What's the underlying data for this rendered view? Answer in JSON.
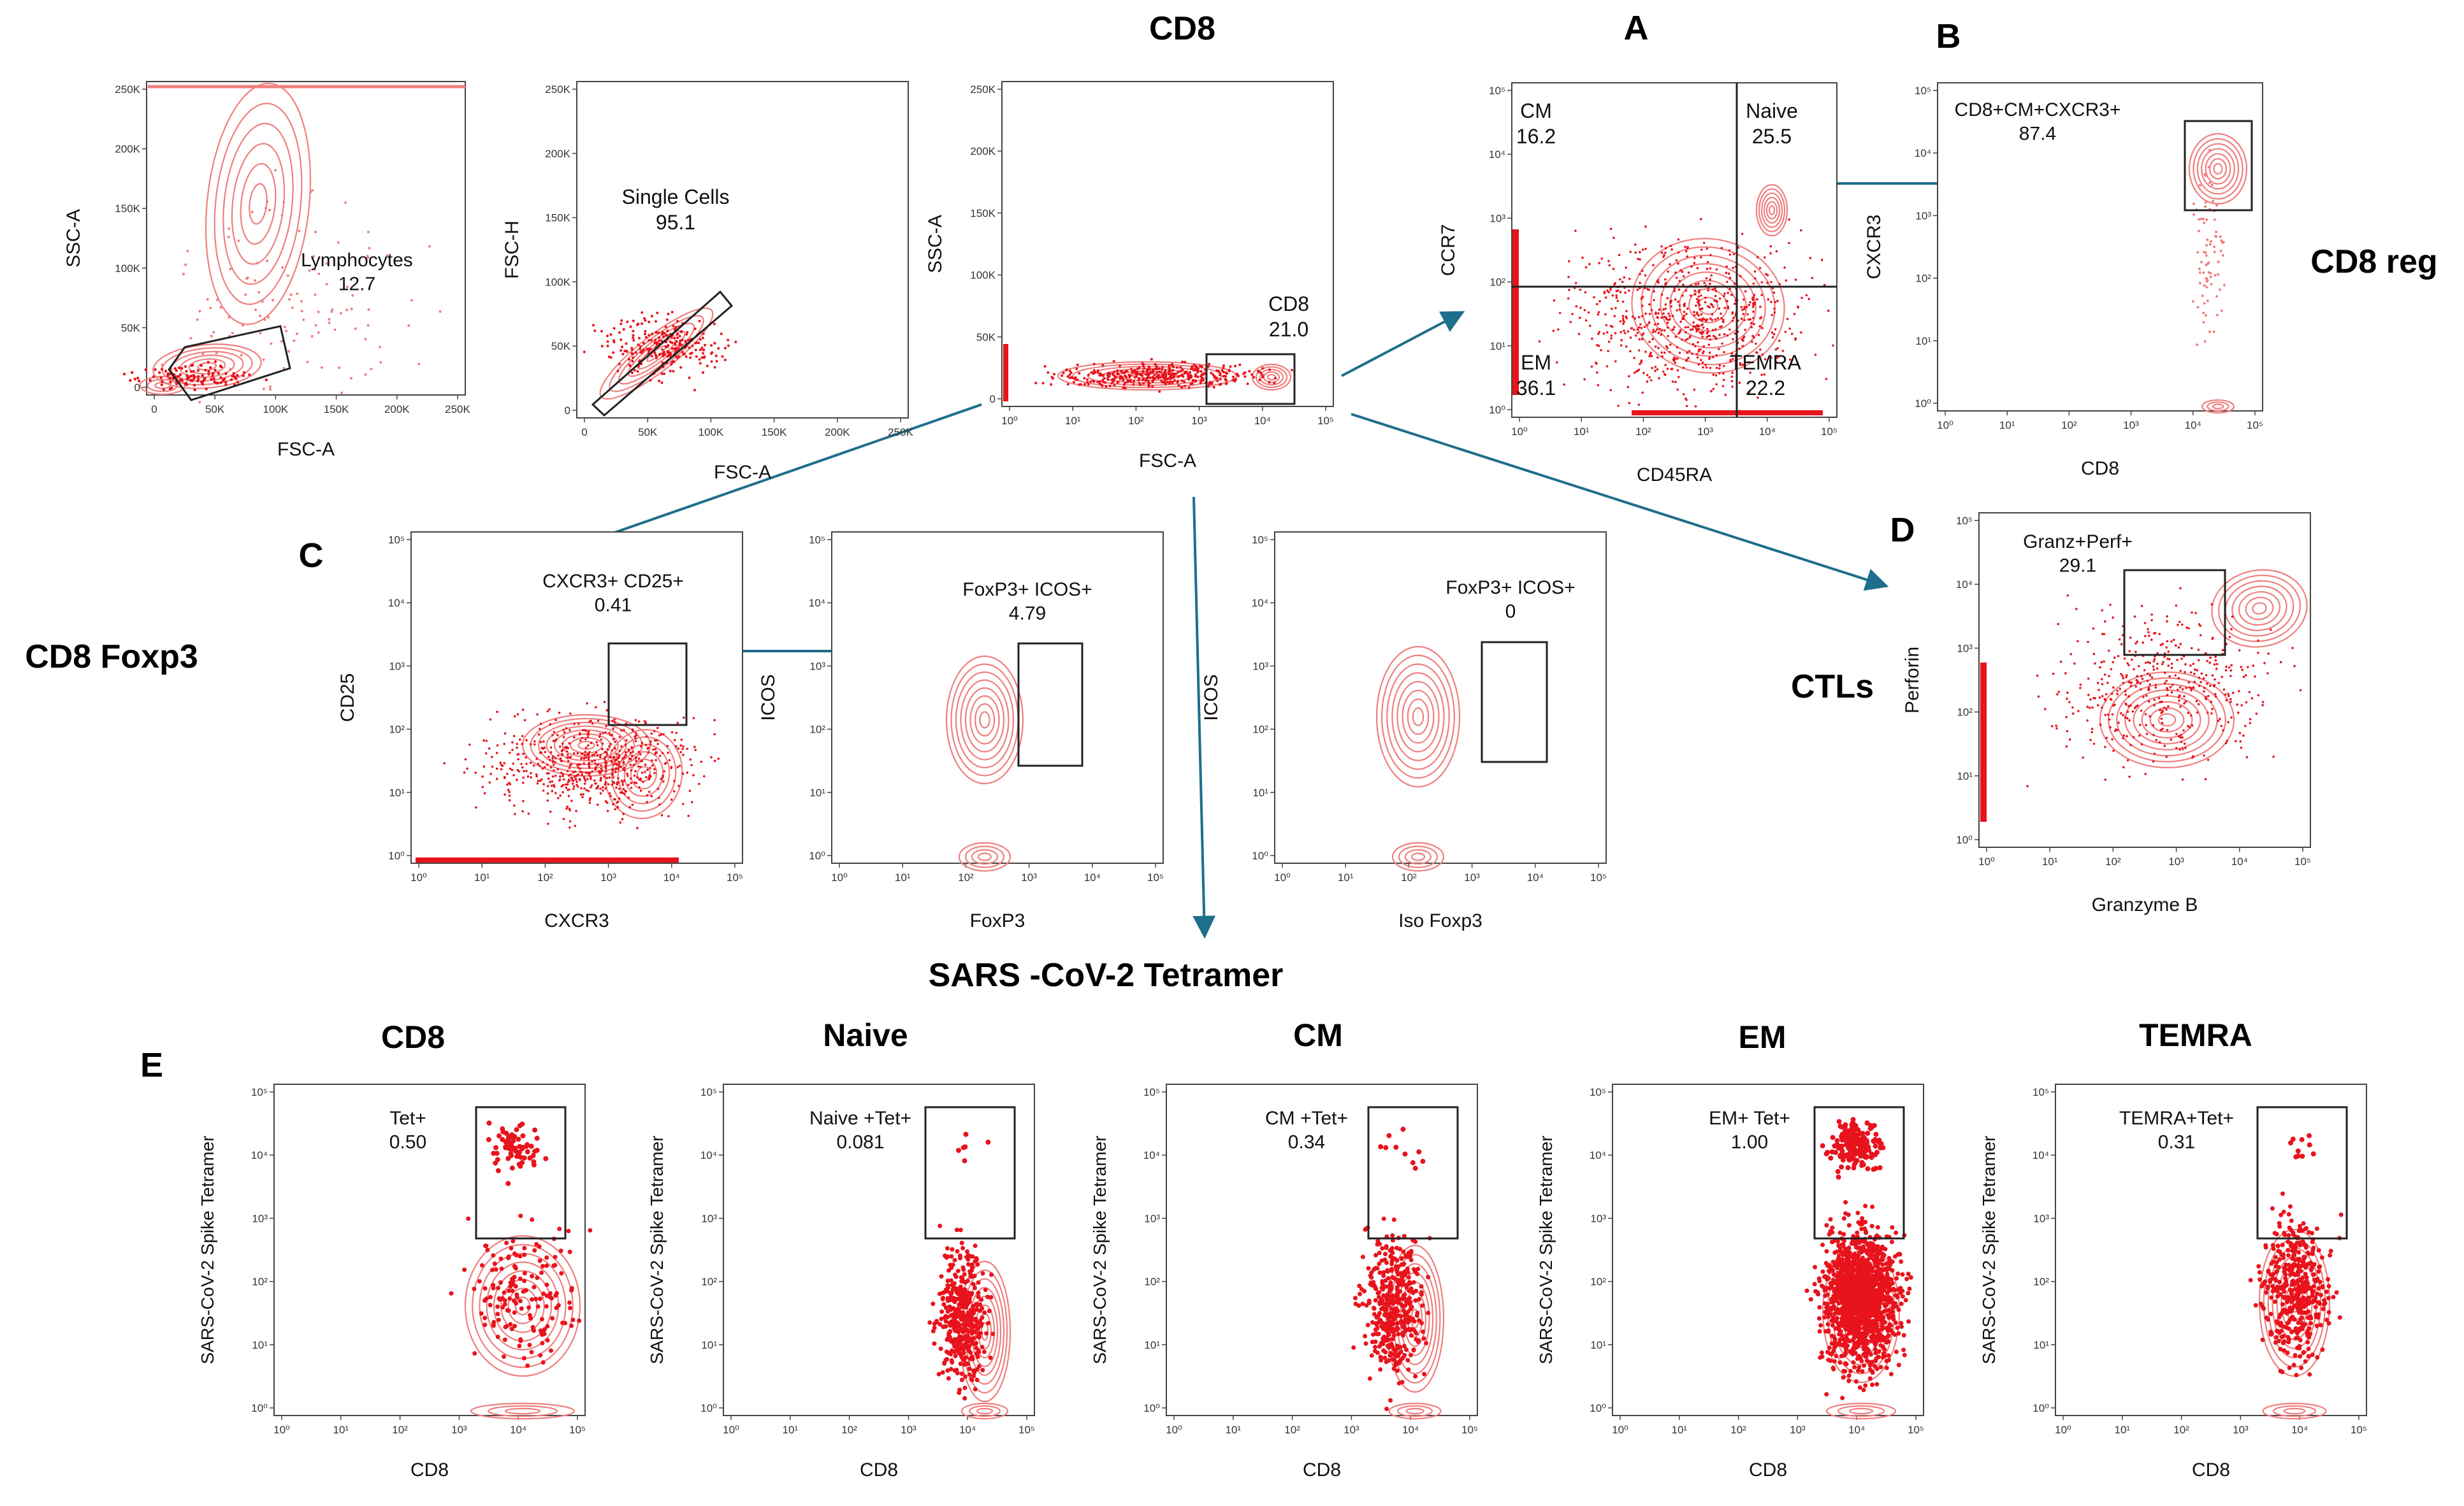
{
  "figure": {
    "section_titles": {
      "cd8": "CD8",
      "cd8_reg": "CD8 reg",
      "cd8_foxp3": "CD8 Foxp3",
      "ctls": "CTLs",
      "tetramer": "SARS -CoV-2 Tetramer"
    },
    "panel_letters": {
      "a": "A",
      "b": "B",
      "c": "C",
      "d": "D",
      "e": "E"
    },
    "colors": {
      "contour": "#ef7f7f",
      "dots": "#e8131c",
      "arrow": "#1f6e8c",
      "gate": "#222222"
    },
    "log_ticks": [
      "10⁰",
      "10¹",
      "10²",
      "10³",
      "10⁴",
      "10⁵"
    ],
    "lin_ticks_y": [
      "0",
      "50K",
      "100K",
      "150K",
      "200K",
      "250K"
    ],
    "lin_ticks_x": [
      "0",
      "50K",
      "100K",
      "150K",
      "200K",
      "250K"
    ],
    "tetramer_row_titles": [
      "CD8",
      "Naive",
      "CM",
      "EM",
      "TEMRA"
    ]
  },
  "chart_data": [
    {
      "id": "lymph",
      "type": "scatter",
      "xlabel": "FSC-A",
      "ylabel": "SSC-A",
      "axis": "linear",
      "gates": [
        {
          "label": "Lymphocytes",
          "value": "12.7"
        }
      ]
    },
    {
      "id": "single",
      "type": "scatter",
      "xlabel": "FSC-A",
      "ylabel": "FSC-H",
      "axis": "linear",
      "gates": [
        {
          "label": "Single Cells",
          "value": "95.1"
        }
      ]
    },
    {
      "id": "cd8gate",
      "type": "scatter",
      "xlabel": "FSC-A",
      "ylabel": "SSC-A",
      "axis": "log-x",
      "gates": [
        {
          "label": "CD8",
          "value": "21.0"
        }
      ]
    },
    {
      "id": "memory",
      "type": "scatter",
      "xlabel": "CD45RA",
      "ylabel": "CCR7",
      "axis": "log",
      "gates": [
        {
          "label": "CM",
          "value": "16.2"
        },
        {
          "label": "Naive",
          "value": "25.5"
        },
        {
          "label": "EM",
          "value": "36.1"
        },
        {
          "label": "TEMRA",
          "value": "22.2"
        }
      ]
    },
    {
      "id": "cxcr3",
      "type": "scatter",
      "xlabel": "CD8",
      "ylabel": "CXCR3",
      "axis": "log",
      "gates": [
        {
          "label": "CD8+CM+CXCR3+",
          "value": "87.4"
        }
      ]
    },
    {
      "id": "cd25",
      "type": "scatter",
      "xlabel": "CXCR3",
      "ylabel": "CD25",
      "axis": "log",
      "gates": [
        {
          "label": "CXCR3+ CD25+",
          "value": "0.41"
        }
      ]
    },
    {
      "id": "icos",
      "type": "scatter",
      "xlabel": "FoxP3",
      "ylabel": "ICOS",
      "axis": "log",
      "gates": [
        {
          "label": "FoxP3+ ICOS+",
          "value": "4.79"
        }
      ]
    },
    {
      "id": "iso",
      "type": "scatter",
      "xlabel": "Iso Foxp3",
      "ylabel": "ICOS",
      "axis": "log",
      "gates": [
        {
          "label": "FoxP3+ ICOS+",
          "value": "0"
        }
      ]
    },
    {
      "id": "ctl",
      "type": "scatter",
      "xlabel": "Granzyme B",
      "ylabel": "Perforin",
      "axis": "log",
      "gates": [
        {
          "label": "Granz+Perf+",
          "value": "29.1"
        }
      ]
    },
    {
      "id": "tet_cd8",
      "type": "scatter",
      "xlabel": "CD8",
      "ylabel": "SARS-CoV-2 Spike Tetramer",
      "axis": "log",
      "gates": [
        {
          "label": "Tet+",
          "value": "0.50"
        }
      ]
    },
    {
      "id": "tet_naive",
      "type": "scatter",
      "xlabel": "CD8",
      "ylabel": "SARS-CoV-2 Spike Tetramer",
      "axis": "log",
      "gates": [
        {
          "label": "Naive +Tet+",
          "value": "0.081"
        }
      ]
    },
    {
      "id": "tet_cm",
      "type": "scatter",
      "xlabel": "CD8",
      "ylabel": "SARS-CoV-2 Spike Tetramer",
      "axis": "log",
      "gates": [
        {
          "label": "CM +Tet+",
          "value": "0.34"
        }
      ]
    },
    {
      "id": "tet_em",
      "type": "scatter",
      "xlabel": "CD8",
      "ylabel": "SARS-CoV-2 Spike Tetramer",
      "axis": "log",
      "gates": [
        {
          "label": "EM+ Tet+",
          "value": "1.00"
        }
      ]
    },
    {
      "id": "tet_temra",
      "type": "scatter",
      "xlabel": "CD8",
      "ylabel": "SARS-CoV-2 Spike Tetramer",
      "axis": "log",
      "gates": [
        {
          "label": "TEMRA+Tet+",
          "value": "0.31"
        }
      ]
    }
  ]
}
